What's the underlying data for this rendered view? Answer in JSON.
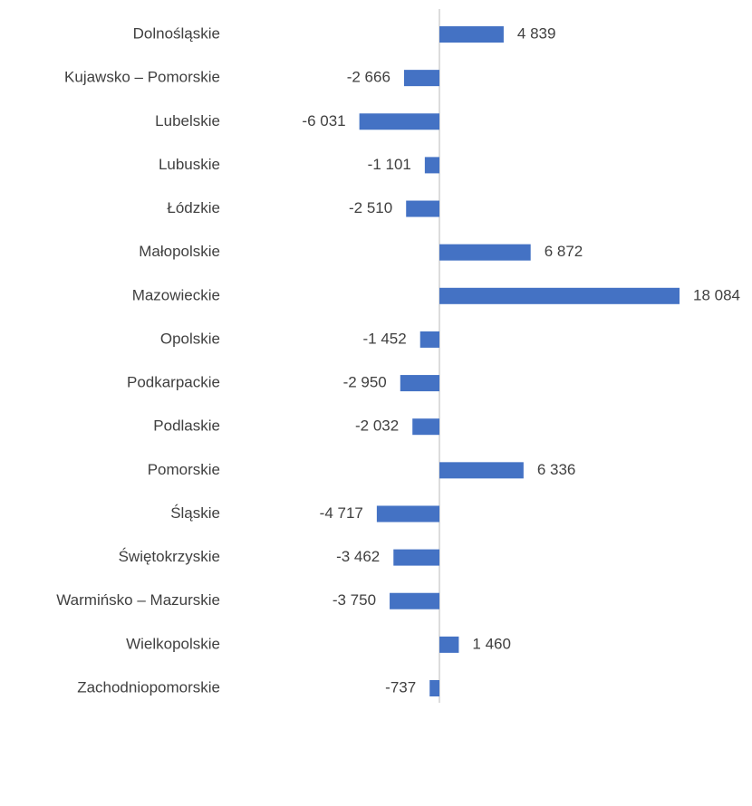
{
  "chart_data": {
    "type": "barh",
    "categories": [
      "Dolnośląskie",
      "Kujawsko – Pomorskie",
      "Lubelskie",
      "Lubuskie",
      "Łódzkie",
      "Małopolskie",
      "Mazowieckie",
      "Opolskie",
      "Podkarpackie",
      "Podlaskie",
      "Pomorskie",
      "Śląskie",
      "Świętokrzyskie",
      "Warmińsko – Mazurskie",
      "Wielkopolskie",
      "Zachodniopomorskie"
    ],
    "values": [
      4839,
      -2666,
      -6031,
      -1101,
      -2510,
      6872,
      18084,
      -1452,
      -2950,
      -2032,
      6336,
      -4717,
      -3462,
      -3750,
      1460,
      -737
    ],
    "value_labels": [
      "4 839",
      "-2 666",
      "-6 031",
      "-1 101",
      "-2 510",
      "6 872",
      "18 084",
      "-1 452",
      "-2 950",
      "-2 032",
      "6 336",
      "-4 717",
      "-3 462",
      "-3 750",
      "1 460",
      "-737"
    ],
    "color": "#4472c4",
    "xlim": [
      -6000,
      20000
    ]
  }
}
